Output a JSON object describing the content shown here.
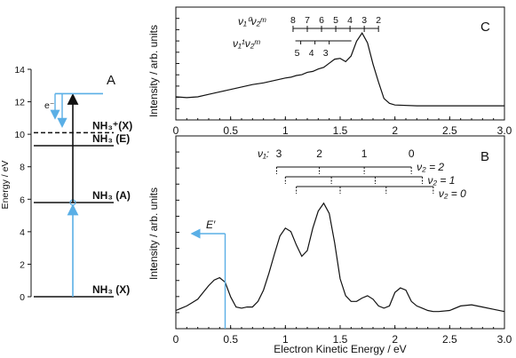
{
  "figure": {
    "background": "#ffffff",
    "ink": "#111111",
    "accent": "#5aafe6"
  },
  "chart_data": [
    {
      "panel": "A",
      "type": "diagram",
      "ylabel": "Energy / eV",
      "ylim": [
        0,
        14
      ],
      "yticks": [
        0,
        2,
        4,
        6,
        8,
        10,
        12,
        14
      ],
      "levels": [
        {
          "label": "NH₃ (X)",
          "energy": 0,
          "style": "solid"
        },
        {
          "label": "NH₃ (A)",
          "energy": 5.8,
          "style": "solid"
        },
        {
          "label": "NH₃ (E)",
          "energy": 9.3,
          "style": "solid"
        },
        {
          "label": "NH₃⁺(X)",
          "energy": 10.1,
          "style": "dashed"
        }
      ],
      "pump_top": 12.5,
      "electron_label": "e⁻"
    },
    {
      "panel": "C",
      "type": "line",
      "xlabel": "",
      "ylabel": "Intensity / arb. units",
      "xlim": [
        0,
        3.0
      ],
      "xticks": [
        "0",
        "0.5",
        "1",
        "1.5",
        "2",
        "2.5",
        "3.0"
      ],
      "series": [
        {
          "x": [
            0.0,
            0.1,
            0.2,
            0.3,
            0.4,
            0.5,
            0.6,
            0.7,
            0.8,
            0.9,
            1.0,
            1.05,
            1.1,
            1.15,
            1.2,
            1.25,
            1.3,
            1.35,
            1.4,
            1.45,
            1.5,
            1.55,
            1.6,
            1.65,
            1.7,
            1.75,
            1.8,
            1.85,
            1.9,
            1.95,
            2.0,
            2.2,
            2.5,
            3.0
          ],
          "y": [
            0.12,
            0.11,
            0.12,
            0.15,
            0.18,
            0.21,
            0.24,
            0.27,
            0.29,
            0.32,
            0.35,
            0.36,
            0.38,
            0.39,
            0.42,
            0.43,
            0.46,
            0.48,
            0.53,
            0.58,
            0.59,
            0.55,
            0.62,
            0.8,
            0.9,
            0.78,
            0.52,
            0.3,
            0.1,
            0.04,
            0.02,
            0.01,
            0.01,
            0.01
          ]
        }
      ],
      "progressions": [
        {
          "label": "ν₁⁰ν₂ᵐ",
          "ticks": [
            "8",
            "7",
            "6",
            "5",
            "4",
            "3",
            "2"
          ],
          "positions": [
            1.07,
            1.2,
            1.33,
            1.46,
            1.59,
            1.72,
            1.85
          ]
        },
        {
          "label": "ν₁¹ν₂ᵐ",
          "ticks": [
            "5",
            "4",
            "3"
          ],
          "positions": [
            1.14,
            1.27,
            1.4
          ]
        }
      ]
    },
    {
      "panel": "B",
      "type": "line",
      "xlabel": "Electron Kinetic Energy / eV",
      "ylabel": "Intensity / arb. units",
      "xlim": [
        0,
        3.0
      ],
      "xticks": [
        "0",
        "0.5",
        "1",
        "1.5",
        "2",
        "2.5",
        "3.0"
      ],
      "series": [
        {
          "x": [
            0.0,
            0.05,
            0.1,
            0.15,
            0.2,
            0.25,
            0.3,
            0.35,
            0.4,
            0.45,
            0.5,
            0.55,
            0.6,
            0.65,
            0.7,
            0.75,
            0.8,
            0.85,
            0.9,
            0.95,
            1.0,
            1.05,
            1.1,
            1.15,
            1.2,
            1.25,
            1.3,
            1.35,
            1.4,
            1.45,
            1.5,
            1.55,
            1.6,
            1.65,
            1.7,
            1.75,
            1.8,
            1.85,
            1.9,
            1.95,
            2.0,
            2.05,
            2.1,
            2.15,
            2.2,
            2.25,
            2.3,
            2.35,
            2.4,
            2.5,
            2.6,
            2.7,
            2.8,
            2.9,
            3.0
          ],
          "y": [
            0.02,
            0.04,
            0.06,
            0.09,
            0.12,
            0.18,
            0.24,
            0.29,
            0.31,
            0.27,
            0.14,
            0.05,
            0.04,
            0.05,
            0.05,
            0.1,
            0.2,
            0.35,
            0.52,
            0.68,
            0.75,
            0.72,
            0.6,
            0.5,
            0.55,
            0.75,
            0.9,
            0.97,
            0.88,
            0.62,
            0.3,
            0.15,
            0.1,
            0.1,
            0.13,
            0.15,
            0.12,
            0.06,
            0.04,
            0.06,
            0.18,
            0.22,
            0.2,
            0.1,
            0.06,
            0.04,
            0.02,
            0.01,
            0.01,
            0.02,
            0.06,
            0.07,
            0.05,
            0.03,
            0.01
          ]
        }
      ],
      "v1_label": "ν₁: ",
      "v1_numbers": [
        "3",
        "2",
        "1",
        "0"
      ],
      "v1_positions": [
        0.94,
        1.31,
        1.72,
        2.15
      ],
      "progressions": [
        {
          "label": "ν₂ = 2",
          "start": 0.92,
          "end": 2.15,
          "ticks": [
            0.92,
            1.31,
            1.72,
            2.15
          ]
        },
        {
          "label": "ν₂ = 1",
          "start": 1.0,
          "end": 2.25,
          "ticks": [
            1.0,
            1.42,
            1.82,
            2.25
          ]
        },
        {
          "label": "ν₂ = 0",
          "start": 1.1,
          "end": 2.35,
          "ticks": [
            1.1,
            1.5,
            1.92,
            2.35
          ]
        }
      ],
      "energy_marker": {
        "label": "E′",
        "x": 0.45
      }
    }
  ]
}
